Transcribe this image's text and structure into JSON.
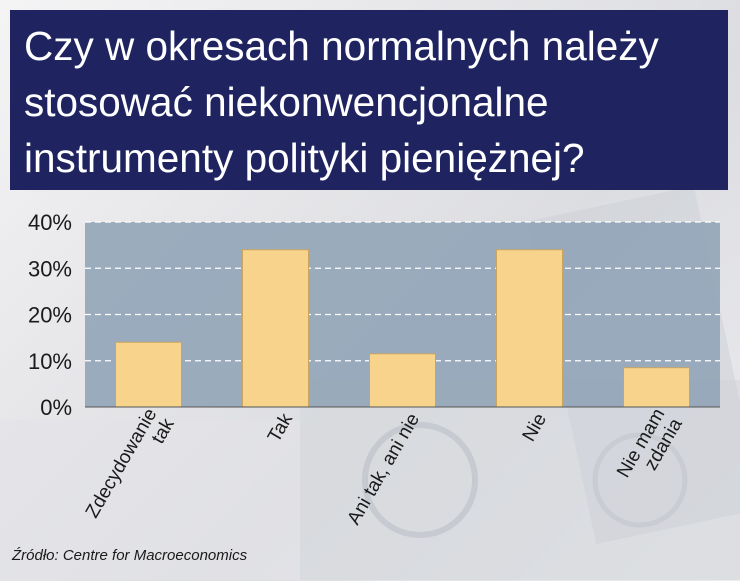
{
  "title": "Czy w okresach normalnych należy stosować niekonwencjonalne instrumenty polityki pieniężnej?",
  "source": "Źródło: Centre for Macroeconomics",
  "colors": {
    "title_bg": "#1f2461",
    "plot_bg": "#8fa3b6",
    "bar": "#f7d38b",
    "bar_stroke": "#c9a560",
    "grid": "#ffffff"
  },
  "chart_data": {
    "type": "bar",
    "categories": [
      [
        "Zdecydowanie",
        "tak"
      ],
      [
        "Tak"
      ],
      [
        "Ani tak, ani nie"
      ],
      [
        "Nie"
      ],
      [
        "Nie mam",
        "zdania"
      ]
    ],
    "values": [
      14,
      34,
      11.5,
      34,
      8.5
    ],
    "yticks": [
      "0%",
      "10%",
      "20%",
      "30%",
      "40%"
    ],
    "ylim": [
      0,
      40
    ],
    "grid": true,
    "legend": "none"
  }
}
